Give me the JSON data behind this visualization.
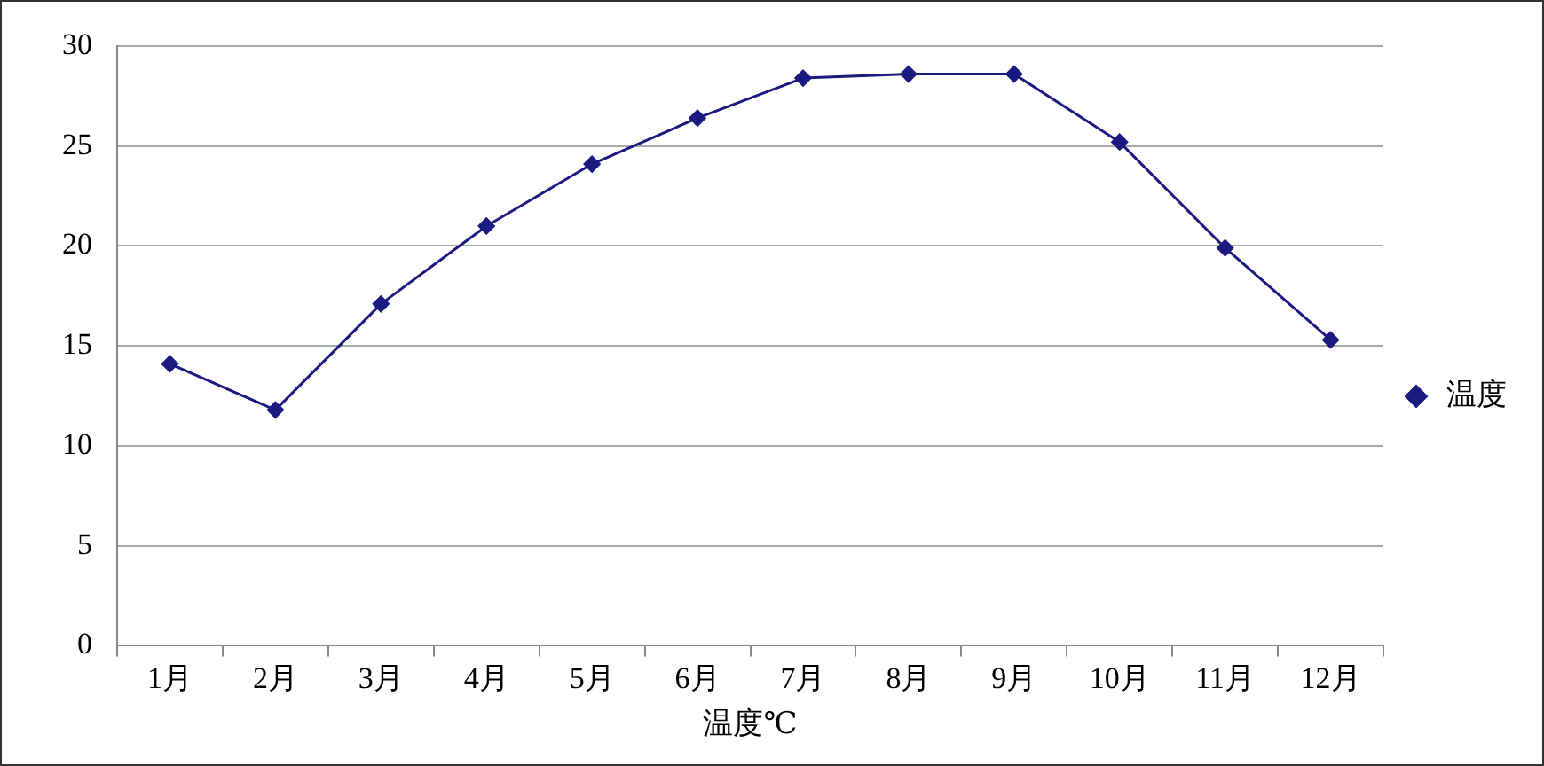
{
  "chart_data": {
    "type": "line",
    "xlabel": "温度℃",
    "categories": [
      "1月",
      "2月",
      "3月",
      "4月",
      "5月",
      "6月",
      "7月",
      "8月",
      "9月",
      "10月",
      "11月",
      "12月"
    ],
    "series": [
      {
        "name": "温度",
        "color": "#1a1a80",
        "values": [
          14.1,
          11.8,
          17.1,
          21,
          24.1,
          26.4,
          28.4,
          28.6,
          28.6,
          25.2,
          19.9,
          15.3
        ]
      }
    ],
    "ylim": [
      0,
      30
    ],
    "yticks": [
      0,
      5,
      10,
      15,
      20,
      25,
      30
    ],
    "grid": "y",
    "legend": "right",
    "marker": "diamond",
    "line_style": "solid"
  }
}
